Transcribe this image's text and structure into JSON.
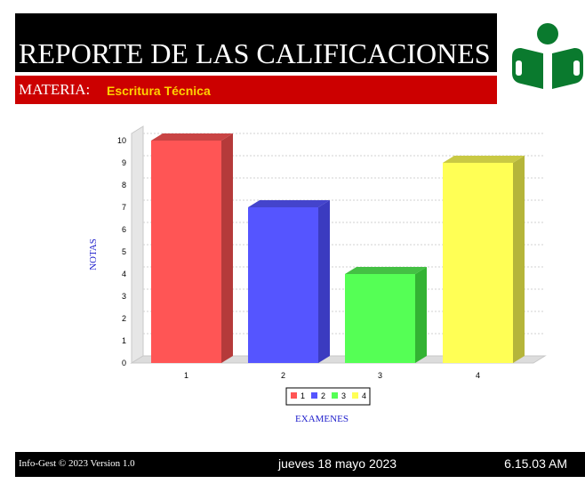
{
  "header": {
    "title": "REPORTE DE LAS CALIFICACIONES",
    "subject_label": "MATERIA:",
    "subject_value": "Escritura Técnica",
    "logo_icon": "reader-logo-icon",
    "logo_color": "#0a7a2e"
  },
  "chart_data": {
    "type": "bar",
    "categories": [
      "1",
      "2",
      "3",
      "4"
    ],
    "values": [
      10,
      7,
      4,
      9
    ],
    "colors": [
      "#ff5555",
      "#5555ff",
      "#55ff55",
      "#ffff55"
    ],
    "side_colors": [
      "#b53a3a",
      "#3b3bc0",
      "#33b333",
      "#b5b53a"
    ],
    "top_colors": [
      "#c94444",
      "#4444cc",
      "#44c044",
      "#c9c944"
    ],
    "xlabel": "EXAMENES",
    "ylabel": "NOTAS",
    "ylim": [
      0,
      10
    ],
    "yticks": [
      "0",
      "1",
      "2",
      "3",
      "4",
      "5",
      "6",
      "7",
      "8",
      "9",
      "10"
    ],
    "legend": [
      "1",
      "2",
      "3",
      "4"
    ],
    "legend_position": "bottom",
    "grid": true
  },
  "footer": {
    "copyright": "Info-Gest © 2023 Version 1.0",
    "date": "jueves 18 mayo 2023",
    "time": "6.15.03 AM"
  }
}
